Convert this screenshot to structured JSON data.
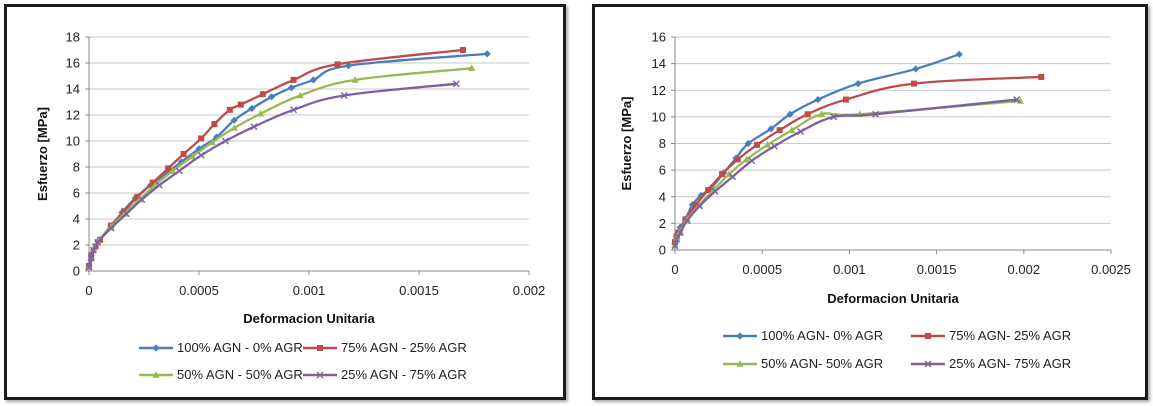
{
  "chart_data": [
    {
      "type": "line",
      "xlabel": "Deformacion Unitaria",
      "ylabel": "Esfuerzo [MPa]",
      "xlim": [
        0,
        0.002
      ],
      "ylim": [
        0,
        18
      ],
      "xticks": [
        0,
        0.0005,
        0.001,
        0.0015,
        0.002
      ],
      "xtick_labels": [
        "0",
        "0.0005",
        "0.001",
        "0.0015",
        "0.002"
      ],
      "yticks": [
        0,
        2,
        4,
        6,
        8,
        10,
        12,
        14,
        16,
        18
      ],
      "ytick_labels": [
        "0",
        "2",
        "4",
        "6",
        "8",
        "10",
        "12",
        "14",
        "16",
        "18"
      ],
      "grid": "horizontal",
      "legend_position": "bottom",
      "series": [
        {
          "name": "100% AGN - 0% AGR",
          "color": "#4a7ebb",
          "marker": "diamond",
          "x": [
            0,
            1e-05,
            2e-05,
            4e-05,
            0.0001,
            0.00015,
            0.00021,
            0.00028,
            0.00035,
            0.00042,
            0.0005,
            0.00058,
            0.00066,
            0.00074,
            0.00083,
            0.00092,
            0.00102,
            0.00118,
            0.00181
          ],
          "y": [
            0.3,
            0.9,
            1.6,
            2.3,
            3.4,
            4.5,
            5.6,
            6.6,
            7.5,
            8.4,
            9.4,
            10.3,
            11.6,
            12.5,
            13.4,
            14.1,
            14.7,
            15.8,
            16.7
          ]
        },
        {
          "name": "75% AGN - 25% AGR",
          "color": "#be4b48",
          "marker": "square",
          "x": [
            0,
            1e-05,
            3e-05,
            5e-05,
            0.0001,
            0.00016,
            0.00022,
            0.00029,
            0.00036,
            0.00043,
            0.00051,
            0.00057,
            0.00064,
            0.00069,
            0.00079,
            0.00093,
            0.00113,
            0.0017
          ],
          "y": [
            0.4,
            1.2,
            1.9,
            2.4,
            3.5,
            4.6,
            5.7,
            6.8,
            7.9,
            9.0,
            10.2,
            11.3,
            12.4,
            12.8,
            13.6,
            14.7,
            15.9,
            17.0
          ]
        },
        {
          "name": "50% AGN - 50% AGR",
          "color": "#98b954",
          "marker": "triangle",
          "x": [
            0,
            1e-05,
            2e-05,
            4e-05,
            0.0001,
            0.00016,
            0.00023,
            0.0003,
            0.00038,
            0.00047,
            0.00056,
            0.00066,
            0.00078,
            0.00096,
            0.00121,
            0.00174
          ],
          "y": [
            0.3,
            1.0,
            1.7,
            2.3,
            3.4,
            4.4,
            5.5,
            6.6,
            7.7,
            8.8,
            9.9,
            11.0,
            12.1,
            13.5,
            14.7,
            15.6
          ]
        },
        {
          "name": "25% AGN - 75% AGR",
          "color": "#7d60a0",
          "marker": "x",
          "x": [
            0,
            1e-05,
            2e-05,
            4e-05,
            0.0001,
            0.00017,
            0.00024,
            0.00032,
            0.00041,
            0.00051,
            0.00062,
            0.00075,
            0.00093,
            0.00116,
            0.00167
          ],
          "y": [
            0.3,
            1.0,
            1.6,
            2.2,
            3.3,
            4.4,
            5.5,
            6.6,
            7.7,
            8.9,
            10.0,
            11.1,
            12.4,
            13.5,
            14.4
          ]
        }
      ]
    },
    {
      "type": "line",
      "xlabel": "Deformacion Unitaria",
      "ylabel": "Esfuerzo [MPa]",
      "xlim": [
        0,
        0.0025
      ],
      "ylim": [
        0,
        16
      ],
      "xticks": [
        0,
        0.0005,
        0.001,
        0.0015,
        0.002,
        0.0025
      ],
      "xtick_labels": [
        "0",
        "0.0005",
        "0.001",
        "0.0015",
        "0.002",
        "0.0025"
      ],
      "yticks": [
        0,
        2,
        4,
        6,
        8,
        10,
        12,
        14,
        16
      ],
      "ytick_labels": [
        "0",
        "2",
        "4",
        "6",
        "8",
        "10",
        "12",
        "14",
        "16"
      ],
      "grid": "horizontal",
      "legend_position": "bottom",
      "series": [
        {
          "name": "100% AGN- 0% AGR",
          "color": "#4a7ebb",
          "marker": "diamond",
          "x": [
            0,
            1e-05,
            3e-05,
            6e-05,
            0.0001,
            0.00015,
            0.00021,
            0.00028,
            0.00035,
            0.00042,
            0.00055,
            0.00066,
            0.00082,
            0.00105,
            0.00138,
            0.00163
          ],
          "y": [
            0.5,
            1.1,
            1.7,
            2.3,
            3.4,
            4.1,
            4.7,
            5.8,
            6.9,
            8.0,
            9.1,
            10.2,
            11.3,
            12.5,
            13.6,
            14.7
          ]
        },
        {
          "name": "75% AGN- 25% AGR",
          "color": "#be4b48",
          "marker": "square",
          "x": [
            0,
            1e-05,
            2e-05,
            6e-05,
            0.00012,
            0.00019,
            0.00027,
            0.00036,
            0.00047,
            0.0006,
            0.00076,
            0.00098,
            0.00137,
            0.0021
          ],
          "y": [
            0.6,
            1.0,
            1.3,
            2.3,
            3.4,
            4.5,
            5.7,
            6.8,
            7.9,
            9.0,
            10.2,
            11.3,
            12.5,
            13.0
          ]
        },
        {
          "name": "50% AGN- 50% AGR",
          "color": "#98b954",
          "marker": "triangle",
          "x": [
            0,
            1e-05,
            3e-05,
            7e-05,
            0.00014,
            0.00022,
            0.00031,
            0.00041,
            0.00053,
            0.00067,
            0.00084,
            0.00106,
            0.00198
          ],
          "y": [
            0.4,
            0.9,
            1.4,
            2.3,
            3.4,
            4.5,
            5.7,
            6.8,
            7.9,
            9.0,
            10.2,
            10.2,
            11.2
          ]
        },
        {
          "name": "25% AGN- 75% AGR",
          "color": "#7d60a0",
          "marker": "x",
          "x": [
            0,
            1e-05,
            3e-05,
            7e-05,
            0.00014,
            0.00023,
            0.00033,
            0.00044,
            0.00057,
            0.00072,
            0.00091,
            0.00115,
            0.00196
          ],
          "y": [
            0.3,
            0.8,
            1.3,
            2.2,
            3.3,
            4.4,
            5.5,
            6.7,
            7.8,
            8.9,
            10.0,
            10.2,
            11.3
          ]
        }
      ]
    }
  ]
}
